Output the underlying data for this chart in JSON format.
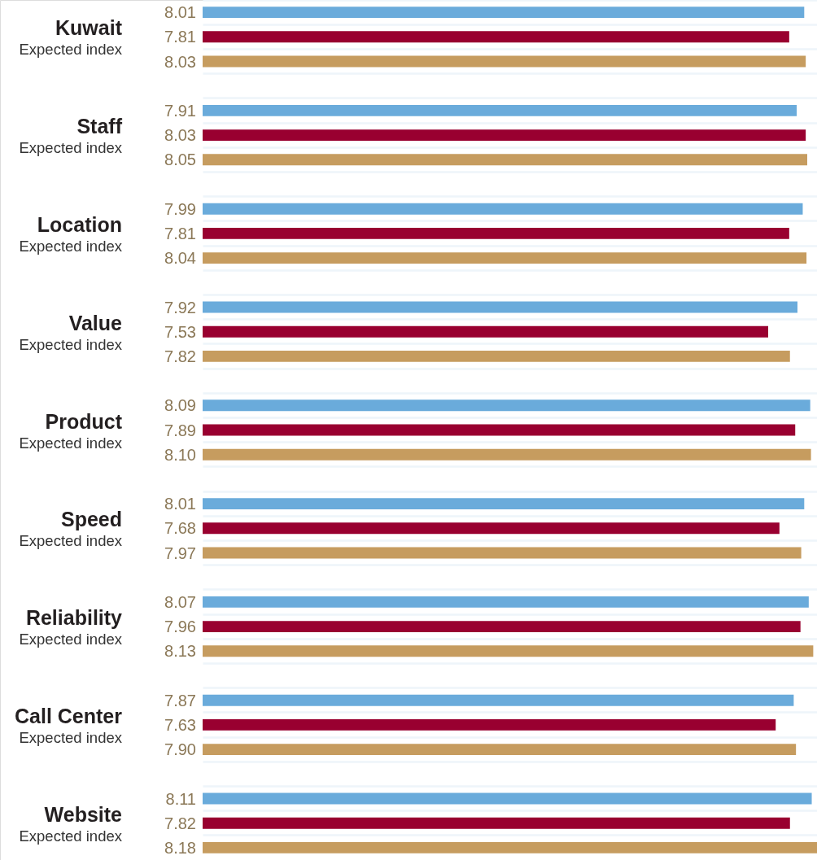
{
  "chart_data": {
    "type": "bar",
    "orientation": "horizontal",
    "categories": [
      "Kuwait\nExpected index",
      "Staff\nExpected index",
      "Location\nExpected index",
      "Value\nExpected index",
      "Product\nExpected index",
      "Speed\nExpected index",
      "Reliability\nExpected index",
      "Call Center\nExpected index",
      "Website\nExpected index"
    ],
    "series": [
      {
        "color": "#6aabdb",
        "values": [
          8.01,
          7.91,
          7.99,
          7.92,
          8.09,
          8.01,
          8.07,
          7.87,
          8.11
        ],
        "value_labels": [
          "8.01",
          "7.91",
          "7.99",
          "7.92",
          "8.09",
          "8.01",
          "8.07",
          "7.87",
          "8.11"
        ]
      },
      {
        "color": "#990030",
        "values": [
          7.81,
          8.03,
          7.81,
          7.53,
          7.89,
          7.68,
          7.96,
          7.63,
          7.82
        ],
        "value_labels": [
          "7.81",
          "8.03",
          "7.81",
          "7.53",
          "7.89",
          "7.68",
          "7.96",
          "7.63",
          "7.82"
        ]
      },
      {
        "color": "#c69c5f",
        "values": [
          8.03,
          8.05,
          8.04,
          7.82,
          8.1,
          7.97,
          8.13,
          7.9,
          8.18
        ],
        "value_labels": [
          "8.03",
          "8.05",
          "8.04",
          "7.82",
          "8.10",
          "7.97",
          "8.13",
          "7.90",
          "8.18"
        ]
      }
    ],
    "xlim": [
      0,
      8.18
    ],
    "tick_labels": "y",
    "grid": "y"
  }
}
